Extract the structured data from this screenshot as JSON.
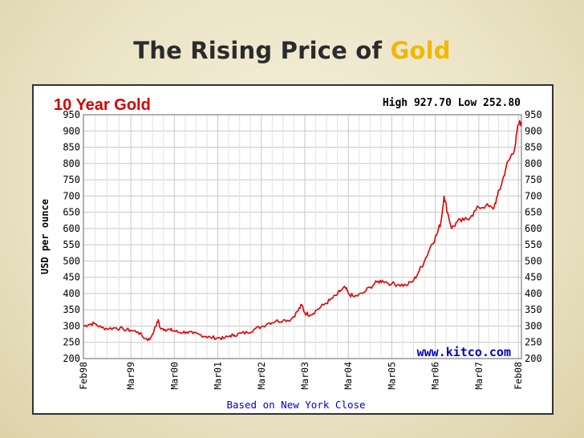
{
  "slide": {
    "title_main": "The Rising Price of",
    "title_accent": "Gold",
    "accent_color": "#f2b700"
  },
  "chart_data": {
    "type": "line",
    "title": "10 Year Gold",
    "title_color": "#d40000",
    "stats_label": "High 927.70 Low 252.80",
    "ylabel": "USD per ounce",
    "xlabel": "Based on New York Close",
    "watermark": "www.kitco.com",
    "xlabel_color": "#0000cc",
    "line_color": "#e00000",
    "ylim": [
      200,
      950
    ],
    "y_ticks": [
      200,
      250,
      300,
      350,
      400,
      450,
      500,
      550,
      600,
      650,
      700,
      750,
      800,
      850,
      900,
      950
    ],
    "x_tick_labels": [
      "Feb98",
      "Mar99",
      "Mar00",
      "Mar01",
      "Mar02",
      "Mar03",
      "Mar04",
      "Mar05",
      "Mar06",
      "Mar07",
      "Feb08"
    ],
    "x_ticks_year": [
      1998.08,
      1999.17,
      2000.17,
      2001.17,
      2002.17,
      2003.17,
      2004.17,
      2005.17,
      2006.17,
      2007.17,
      2008.08
    ],
    "xlim": [
      1998.08,
      2008.15
    ],
    "grid": true,
    "series": [
      {
        "x": [
          1998.08,
          1998.2,
          1998.33,
          1998.5,
          1998.67,
          1998.83,
          1999.0,
          1999.17,
          1999.33,
          1999.5,
          1999.6,
          1999.75,
          1999.8,
          1999.83,
          1999.95,
          2000.08,
          2000.17,
          2000.3,
          2000.45,
          2000.6,
          2000.75,
          2000.9,
          2001.0,
          2001.17,
          2001.3,
          2001.45,
          2001.55,
          2001.7,
          2001.85,
          2002.0,
          2002.17,
          2002.35,
          2002.5,
          2002.67,
          2002.85,
          2003.0,
          2003.1,
          2003.17,
          2003.3,
          2003.45,
          2003.6,
          2003.75,
          2003.9,
          2004.0,
          2004.1,
          2004.17,
          2004.3,
          2004.5,
          2004.67,
          2004.83,
          2004.95,
          2005.17,
          2005.33,
          2005.5,
          2005.67,
          2005.8,
          2005.92,
          2006.08,
          2006.2,
          2006.3,
          2006.37,
          2006.45,
          2006.55,
          2006.67,
          2006.83,
          2007.0,
          2007.17,
          2007.33,
          2007.5,
          2007.6,
          2007.7,
          2007.8,
          2007.9,
          2008.0,
          2008.08,
          2008.15
        ],
        "values": [
          300,
          305,
          308,
          295,
          292,
          295,
          290,
          287,
          282,
          262,
          258,
          300,
          320,
          298,
          290,
          288,
          285,
          280,
          282,
          277,
          274,
          268,
          265,
          264,
          262,
          270,
          272,
          278,
          280,
          290,
          298,
          310,
          315,
          318,
          320,
          345,
          365,
          340,
          335,
          350,
          365,
          380,
          395,
          410,
          418,
          400,
          390,
          400,
          420,
          435,
          440,
          430,
          428,
          425,
          440,
          470,
          500,
          550,
          580,
          620,
          700,
          650,
          600,
          620,
          625,
          640,
          665,
          670,
          660,
          700,
          740,
          790,
          820,
          850,
          920,
          928
        ]
      }
    ]
  }
}
